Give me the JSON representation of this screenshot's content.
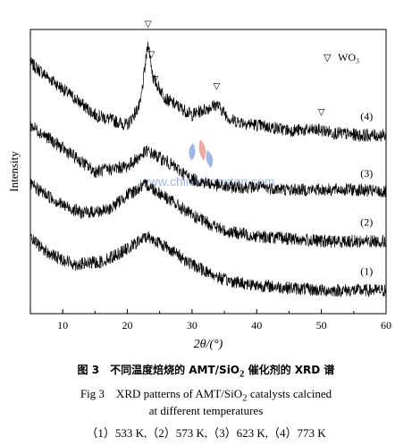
{
  "chart_data": {
    "type": "line",
    "xlabel": "2θ/(°)",
    "ylabel": "Intensity",
    "xlim": [
      5,
      60
    ],
    "xticks": [
      10,
      20,
      30,
      40,
      50,
      60
    ],
    "grid": false,
    "legend": {
      "position": "top-right",
      "marker": "▽",
      "label": "WO₃"
    },
    "series": [
      {
        "name": "(4)",
        "x": [
          5,
          10,
          15,
          20,
          22,
          23.2,
          24,
          26,
          30,
          33.8,
          36,
          40,
          45,
          50,
          52,
          56,
          60
        ],
        "y": [
          92,
          82,
          72,
          68,
          76,
          100,
          86,
          78,
          72,
          76,
          70,
          68,
          66,
          66,
          65,
          64,
          64
        ]
      },
      {
        "name": "(3)",
        "x": [
          5,
          10,
          15,
          20,
          23,
          26,
          30,
          35,
          40,
          45,
          50,
          55,
          60
        ],
        "y": [
          68,
          59,
          50,
          52,
          58,
          54,
          47,
          44,
          44,
          43,
          43,
          43,
          42
        ]
      },
      {
        "name": "(2)",
        "x": [
          5,
          10,
          13,
          17,
          20,
          23,
          26,
          30,
          35,
          40,
          45,
          50,
          55,
          60
        ],
        "y": [
          45,
          37,
          34,
          35,
          41,
          45,
          40,
          33,
          27,
          25,
          24,
          23,
          23,
          23
        ]
      },
      {
        "name": "(1)",
        "x": [
          5,
          8,
          12,
          16,
          20,
          23,
          26,
          30,
          35,
          40,
          45,
          50,
          55,
          60
        ],
        "y": [
          24,
          18,
          14,
          15,
          20,
          25,
          21,
          14,
          8,
          6,
          5,
          4,
          4,
          4
        ]
      }
    ],
    "wo3_peaks": [
      23.2,
      23.7,
      24.3,
      33.8,
      50.0
    ],
    "curve_labels": [
      "(4)",
      "(3)",
      "(2)",
      "(1)"
    ]
  },
  "watermark": "www.chinatungsten.com",
  "caption": {
    "line1_prefix": "图 3　不同温度焙烧的 AMT/SiO",
    "line1_sub": "2",
    "line1_suffix": " 催化剂的 XRD 谱",
    "line2_prefix": "Fig 3　XRD patterns of AMT/SiO",
    "line2_sub": "2",
    "line2_suffix": " catalysts calcined",
    "line3": "at different temperatures",
    "line4": "（1）533 K,（2）573 K,（3）623 K,（4）773 K"
  },
  "colors": {
    "line": "#000000",
    "watermark_red": "#d9443a",
    "watermark_blue": "#2e63c7"
  }
}
